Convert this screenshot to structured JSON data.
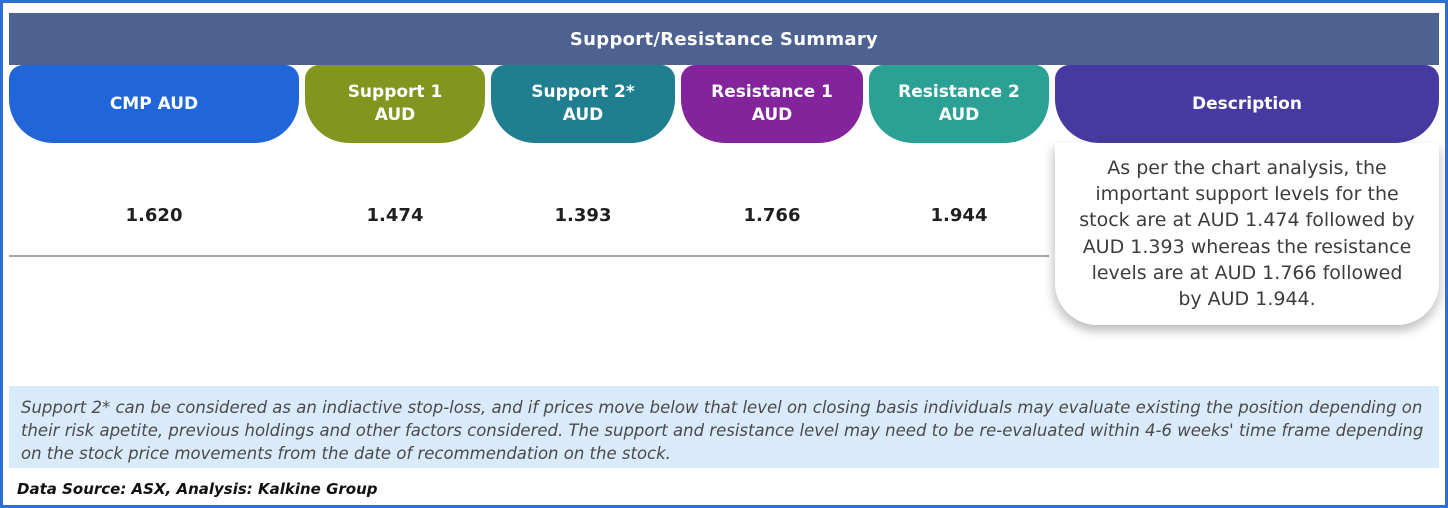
{
  "colors": {
    "frame_border": "#2d6fd2",
    "header_bg": "#4d6290",
    "cmp": "#2066d9",
    "support1": "#82951e",
    "support2": "#1f7f90",
    "resistance1": "#83249c",
    "resistance2": "#2ba195",
    "description": "#46399f",
    "note_bg": "#d9ebfa"
  },
  "header": {
    "title": "Support/Resistance Summary"
  },
  "table": {
    "columns": [
      {
        "id": "cmp",
        "label_lines": [
          "CMP AUD",
          ""
        ],
        "value": "1.620"
      },
      {
        "id": "support1",
        "label_lines": [
          "Support 1",
          "AUD"
        ],
        "value": "1.474"
      },
      {
        "id": "support2",
        "label_lines": [
          "Support 2*",
          "AUD"
        ],
        "value": "1.393"
      },
      {
        "id": "resistance1",
        "label_lines": [
          "Resistance 1",
          "AUD"
        ],
        "value": "1.766"
      },
      {
        "id": "resistance2",
        "label_lines": [
          "Resistance 2",
          "AUD"
        ],
        "value": "1.944"
      }
    ],
    "description": {
      "label": "Description",
      "text": "As per the chart analysis, the important support levels for the stock are at AUD 1.474 followed by AUD 1.393 whereas the resistance levels are at AUD 1.766 followed by AUD 1.944."
    }
  },
  "disclaimer": "Support 2* can be considered as an indiactive stop-loss, and if prices move below that level on closing basis individuals may evaluate existing the position depending on their risk apetite, previous holdings and other factors considered. The support and resistance level may need to be re-evaluated within 4-6 weeks' time frame depending on the stock price movements from  the date of recommendation on the stock.",
  "source_note": "Data Source: ASX, Analysis: Kalkine Group"
}
